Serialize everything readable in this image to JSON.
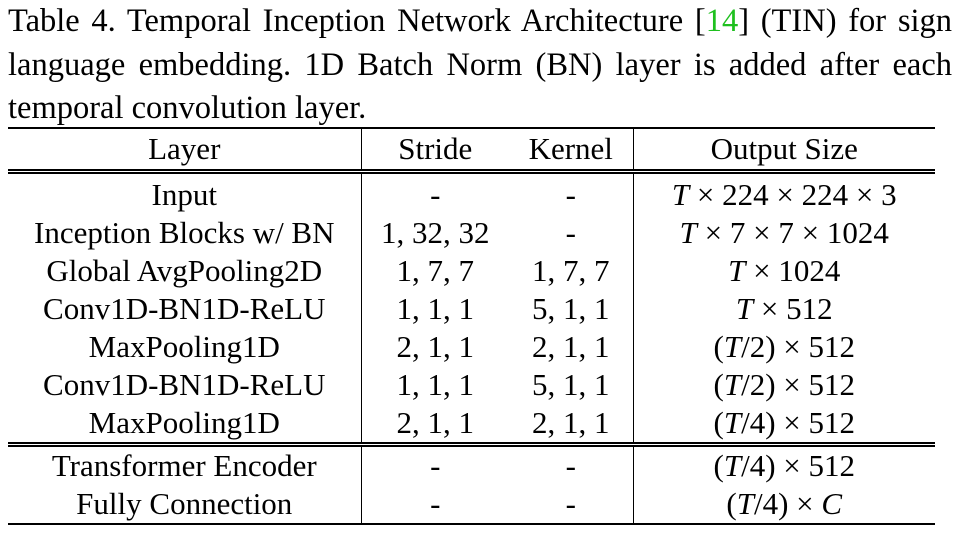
{
  "caption": {
    "prefix": "Table 4. Temporal Inception Network Architecture [",
    "ref": "14",
    "suffix": "] (TIN) for sign language embedding.  1D Batch Norm (BN) layer is added after each temporal convolution layer."
  },
  "table": {
    "headers": {
      "layer": "Layer",
      "stride": "Stride",
      "kernel": "Kernel",
      "output": "Output Size"
    },
    "group1": [
      {
        "layer": "Input",
        "stride": "-",
        "kernel": "-",
        "output": "T × 224 × 224 × 3"
      },
      {
        "layer": "Inception Blocks w/ BN",
        "stride": "1, 32, 32",
        "kernel": "-",
        "output": "T × 7 × 7 × 1024"
      },
      {
        "layer": "Global AvgPooling2D",
        "stride": "1, 7, 7",
        "kernel": "1, 7, 7",
        "output": "T × 1024"
      },
      {
        "layer": "Conv1D-BN1D-ReLU",
        "stride": "1, 1, 1",
        "kernel": "5, 1, 1",
        "output": "T × 512"
      },
      {
        "layer": "MaxPooling1D",
        "stride": "2, 1, 1",
        "kernel": "2, 1, 1",
        "output": "(T/2) × 512"
      },
      {
        "layer": "Conv1D-BN1D-ReLU",
        "stride": "1, 1, 1",
        "kernel": "5, 1, 1",
        "output": "(T/2) × 512"
      },
      {
        "layer": "MaxPooling1D",
        "stride": "2, 1, 1",
        "kernel": "2, 1, 1",
        "output": "(T/4) × 512"
      }
    ],
    "group2": [
      {
        "layer": "Transformer Encoder",
        "stride": "-",
        "kernel": "-",
        "output": "(T/4) × 512"
      },
      {
        "layer": "Fully Connection",
        "stride": "-",
        "kernel": "-",
        "output": "(T/4) × C"
      }
    ]
  }
}
